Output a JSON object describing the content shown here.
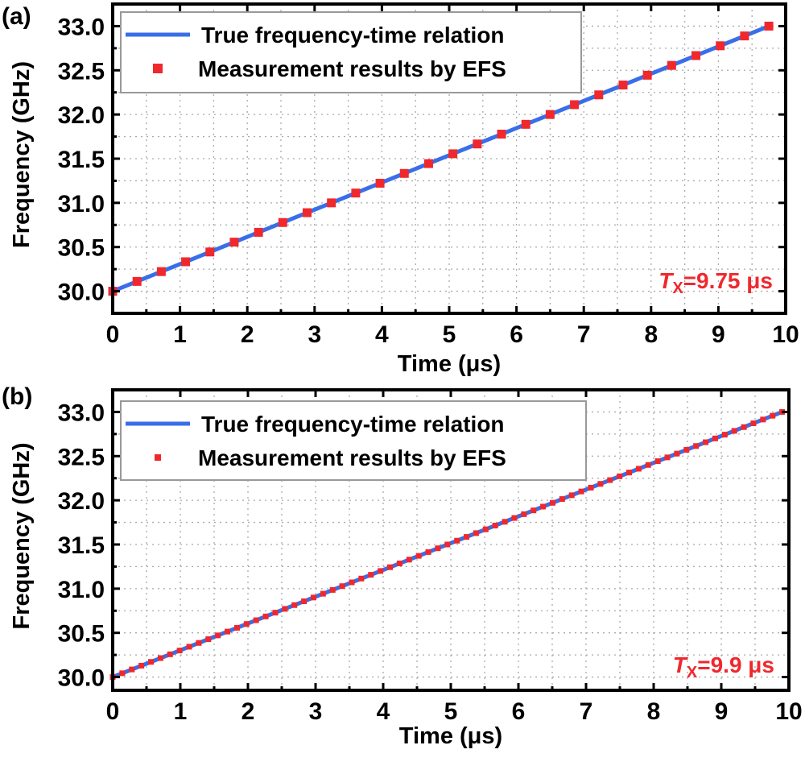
{
  "chart_data": [
    {
      "panel_label": "(a)",
      "type": "line",
      "xlabel": "Time (μs)",
      "ylabel": "Frequency (GHz)",
      "xlim": [
        0,
        10
      ],
      "ylim": [
        29.75,
        33.25
      ],
      "xticks": [
        "0",
        "1",
        "2",
        "3",
        "4",
        "5",
        "6",
        "7",
        "8",
        "9",
        "10"
      ],
      "yticks": [
        "30.0",
        "30.5",
        "31.0",
        "31.5",
        "32.0",
        "32.5",
        "33.0"
      ],
      "grid": true,
      "legend_placement": "top-left",
      "annotation": {
        "symbol": "T",
        "subscript": "X",
        "text": "=9.75 μs"
      },
      "series": [
        {
          "name": "True frequency-time relation",
          "kind": "line",
          "color": "#3a6ee8",
          "x": [
            0,
            9.75
          ],
          "y": [
            30.0,
            33.0
          ]
        },
        {
          "name": "Measurement results by EFS",
          "kind": "scatter",
          "color": "#f0282d",
          "x_start": 0,
          "x_end": 9.75,
          "count": 28,
          "y_start": 30.0,
          "y_end": 33.0
        }
      ]
    },
    {
      "panel_label": "(b)",
      "type": "line",
      "xlabel": "Time (μs)",
      "ylabel": "Frequency (GHz)",
      "xlim": [
        0,
        10
      ],
      "ylim": [
        29.85,
        33.25
      ],
      "xticks": [
        "0",
        "1",
        "2",
        "3",
        "4",
        "5",
        "6",
        "7",
        "8",
        "9",
        "10"
      ],
      "yticks": [
        "30.0",
        "30.5",
        "31.0",
        "31.5",
        "32.0",
        "32.5",
        "33.0"
      ],
      "grid": true,
      "legend_placement": "top-left",
      "annotation": {
        "symbol": "T",
        "subscript": "X",
        "text": "=9.9 μs"
      },
      "series": [
        {
          "name": "True frequency-time relation",
          "kind": "line",
          "color": "#3a6ee8",
          "x": [
            0,
            9.9
          ],
          "y": [
            30.0,
            33.0
          ]
        },
        {
          "name": "Measurement results by EFS",
          "kind": "scatter",
          "color": "#f0282d",
          "x_start": 0,
          "x_end": 9.9,
          "count": 71,
          "y_start": 30.0,
          "y_end": 33.0
        }
      ]
    }
  ]
}
